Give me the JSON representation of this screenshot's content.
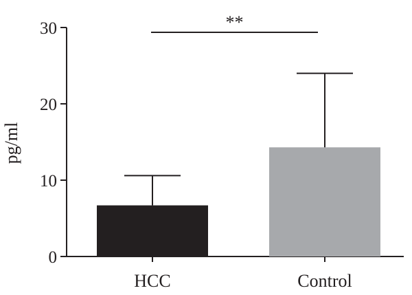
{
  "chart_data": {
    "type": "bar",
    "title": "",
    "xlabel": "",
    "ylabel": "pg/ml",
    "ylim": [
      0,
      30
    ],
    "yticks": [
      0,
      10,
      20,
      30
    ],
    "categories": [
      "HCC",
      "Control"
    ],
    "values": [
      6.7,
      14.3
    ],
    "error_upper": [
      10.6,
      24.0
    ],
    "bar_colors": [
      "#231f20",
      "#a7a9ac"
    ],
    "annotations": [
      {
        "text": "**",
        "between": [
          "HCC",
          "Control"
        ],
        "y": 30
      }
    ],
    "grid": false
  }
}
